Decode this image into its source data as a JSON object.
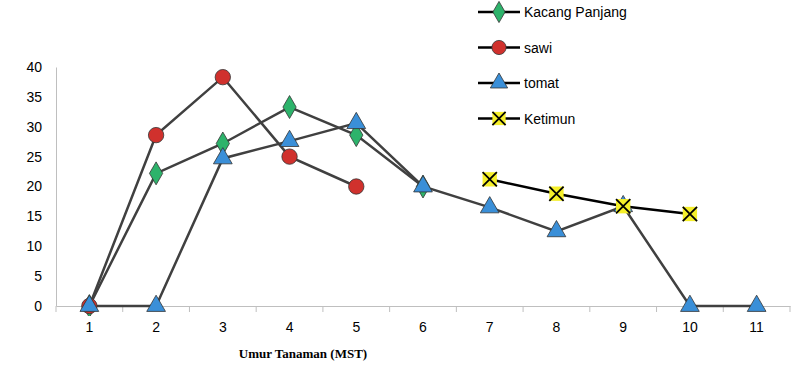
{
  "chart_data": {
    "type": "line",
    "x_label": "Umur Tanaman (MST)",
    "categories": [
      1,
      2,
      3,
      4,
      5,
      6,
      7,
      8,
      9,
      10,
      11
    ],
    "series": [
      {
        "name": "Kacang Panjang",
        "color": "#2db36b",
        "marker": "diamond",
        "values": [
          0,
          22.2,
          27.2,
          33.3,
          28.6,
          20,
          null,
          null,
          null,
          null,
          null
        ]
      },
      {
        "name": "sawi",
        "color": "#d0312d",
        "marker": "circle",
        "values": [
          0,
          28.6,
          38.3,
          25,
          20,
          null,
          null,
          null,
          null,
          null,
          null
        ]
      },
      {
        "name": "tomat",
        "color": "#3a8fd8",
        "marker": "triangle",
        "values": [
          0,
          0,
          24.7,
          27.6,
          30.6,
          20,
          16.5,
          12.5,
          16.7,
          0,
          0
        ]
      },
      {
        "name": "Ketimun",
        "color": "#f5ef2a",
        "marker": "x",
        "values": [
          null,
          null,
          null,
          null,
          null,
          null,
          21.2,
          18.8,
          16.7,
          15.4,
          null
        ]
      }
    ],
    "ylim": [
      0,
      40
    ],
    "yticks": [
      0,
      5,
      10,
      15,
      20,
      25,
      30,
      35,
      40
    ],
    "grid": false,
    "legend": "top-right"
  }
}
